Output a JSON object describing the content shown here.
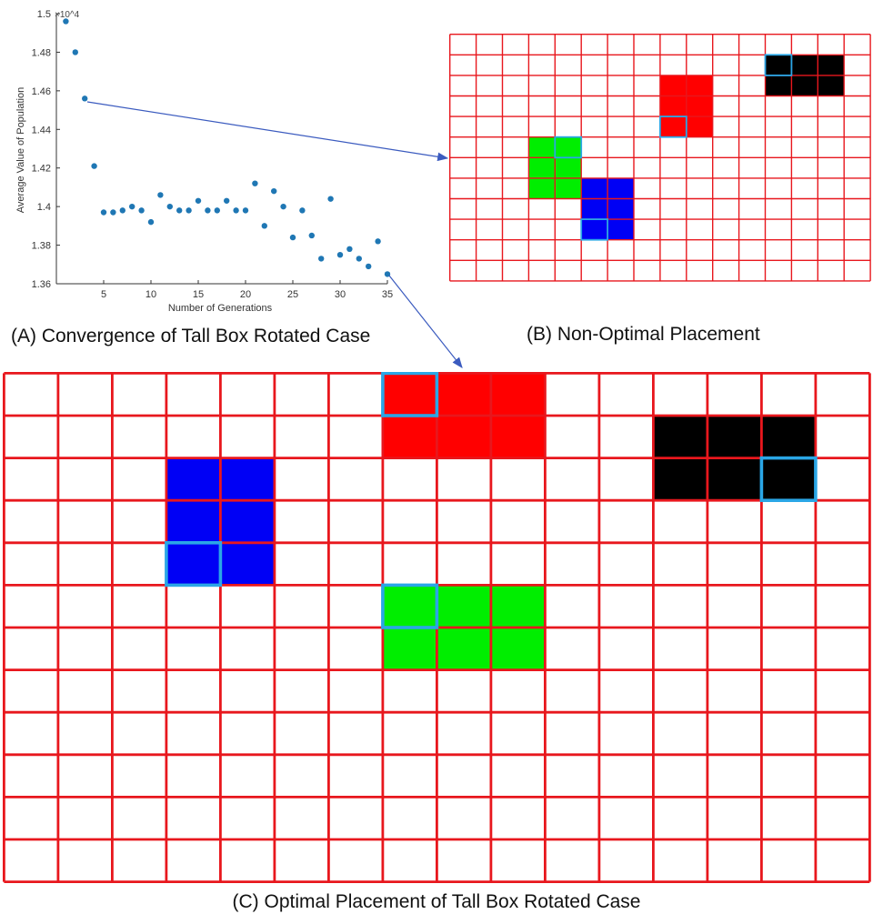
{
  "captions": {
    "a": "(A) Convergence of Tall Box Rotated Case",
    "b": "(B) Non-Optimal Placement",
    "c": "(C) Optimal Placement of Tall Box Rotated Case"
  },
  "colors": {
    "grid": "#e8171d",
    "marker": "#1f77b4",
    "highlight": "#2aa6e6",
    "red": "#ff0000",
    "green": "#00ee00",
    "blue": "#0000f5",
    "black": "#000000",
    "arrow": "#3b5bbf"
  },
  "chart_data": {
    "type": "scatter",
    "title": "",
    "xlabel": "Number of Generations",
    "ylabel": "Average Value of Population",
    "exponent_label": "×10^4",
    "xlim": [
      0,
      35
    ],
    "ylim": [
      1.36,
      1.5
    ],
    "x_ticks": [
      5,
      10,
      15,
      20,
      25,
      30,
      35
    ],
    "y_ticks": [
      1.36,
      1.38,
      1.4,
      1.42,
      1.44,
      1.46,
      1.48,
      1.5
    ],
    "x": [
      1,
      2,
      3,
      4,
      5,
      6,
      7,
      8,
      9,
      10,
      11,
      12,
      13,
      14,
      15,
      16,
      17,
      18,
      19,
      20,
      21,
      22,
      23,
      24,
      25,
      26,
      27,
      28,
      29,
      30,
      31,
      32,
      33,
      34,
      35
    ],
    "y": [
      1.496,
      1.48,
      1.456,
      1.421,
      1.397,
      1.397,
      1.398,
      1.4,
      1.398,
      1.392,
      1.406,
      1.4,
      1.398,
      1.398,
      1.403,
      1.398,
      1.398,
      1.403,
      1.398,
      1.398,
      1.412,
      1.39,
      1.408,
      1.4,
      1.384,
      1.398,
      1.385,
      1.373,
      1.404,
      1.375,
      1.378,
      1.373,
      1.369,
      1.382,
      1.365
    ]
  },
  "grid_b": {
    "cols": 16,
    "rows": 12,
    "boxes": [
      {
        "name": "red",
        "col": 8,
        "row": 2,
        "w": 2,
        "h": 3,
        "hcol": 8,
        "hrow": 4
      },
      {
        "name": "black",
        "col": 12,
        "row": 1,
        "w": 3,
        "h": 2,
        "hcol": 12,
        "hrow": 1
      },
      {
        "name": "green",
        "col": 3,
        "row": 5,
        "w": 2,
        "h": 3,
        "hcol": 4,
        "hrow": 5
      },
      {
        "name": "blue",
        "col": 5,
        "row": 7,
        "w": 2,
        "h": 3,
        "hcol": 5,
        "hrow": 9
      }
    ]
  },
  "grid_c": {
    "cols": 16,
    "rows": 12,
    "boxes": [
      {
        "name": "red",
        "col": 7,
        "row": 0,
        "w": 3,
        "h": 2,
        "hcol": 7,
        "hrow": 0
      },
      {
        "name": "black",
        "col": 12,
        "row": 1,
        "w": 3,
        "h": 2,
        "hcol": 14,
        "hrow": 2
      },
      {
        "name": "blue",
        "col": 3,
        "row": 2,
        "w": 2,
        "h": 3,
        "hcol": 3,
        "hrow": 4
      },
      {
        "name": "green",
        "col": 7,
        "row": 5,
        "w": 3,
        "h": 2,
        "hcol": 7,
        "hrow": 5
      }
    ]
  }
}
